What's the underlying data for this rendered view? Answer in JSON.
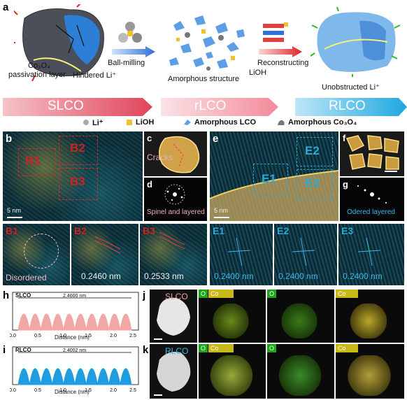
{
  "panels": {
    "a": "a",
    "b": "b",
    "c": "c",
    "d": "d",
    "e": "e",
    "f": "f",
    "g": "g",
    "h": "h",
    "i": "i",
    "j": "j",
    "k": "k"
  },
  "schematic": {
    "co3o4_layer": "Co₃O₄",
    "passivation": "passivation layer",
    "hindered": "Hindered  Li⁺",
    "ball_milling": "Ball-milling",
    "amorphous": "Amorphous structure",
    "lioh_arrow": "LiOH",
    "reconstructing": "Reconstructing",
    "unobstructed": "Unobstructed Li⁺",
    "stages": [
      "SLCO",
      "rLCO",
      "RLCO"
    ],
    "legend": [
      "Li⁺",
      "LiOH",
      "Amorphous LCO",
      "Amorphous Co₃O₄"
    ]
  },
  "tem": {
    "boxes_b": [
      "B1",
      "B2",
      "B3"
    ],
    "boxes_e": [
      "E1",
      "E2",
      "E3"
    ],
    "scale_b": "5 nm",
    "scale_e": "5 nm",
    "cracks": "Cracks",
    "spinel": "Spinel and layered",
    "odered": "Odered layered",
    "zoom_labels": [
      "B1",
      "B2",
      "B3",
      "E1",
      "E2",
      "E3"
    ],
    "disordered": "Disordered",
    "d_b2": "0.2460 nm",
    "d_b3": "0.2533 nm",
    "d_e1": "0.2400 nm",
    "d_e2": "0.2400 nm",
    "d_e3": "0.2400 nm"
  },
  "colors": {
    "slco": "#e0455a",
    "rlco": "#f28a9a",
    "rlco_blue": "#1ea8e0",
    "profile_h": "#f2a6a6",
    "profile_i": "#1e9ee0"
  },
  "profile_h": {
    "label": "SLCO",
    "span": "2.4600 nm",
    "xlabel": "Distance (nm)",
    "ticks": [
      "0.0",
      "0.5",
      "1.0",
      "1.5",
      "2.0",
      "2.5"
    ],
    "peaks": 10,
    "xmax": 2.5
  },
  "profile_i": {
    "label": "RLCO",
    "span": "2.4002 nm",
    "xlabel": "Distance (nm)",
    "ticks": [
      "0.0",
      "0.5",
      "1.0",
      "1.5",
      "2.0",
      "2.5"
    ],
    "peaks": 10,
    "xmax": 2.5
  },
  "eds": {
    "j_label": "SLCO",
    "k_label": "RLCO",
    "O": "O",
    "Co": "Co"
  }
}
